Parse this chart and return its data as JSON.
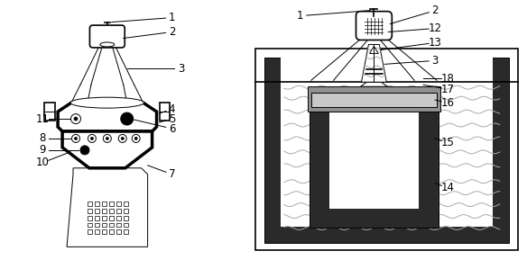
{
  "bg_color": "#ffffff",
  "line_color": "#000000",
  "gray_dark": "#2a2a2a",
  "gray_med": "#707070",
  "gray_light_wave": "#aaaaaa",
  "gray_winding_top": "#909090",
  "gray_winding_light": "#c8c8c8",
  "fig_width": 5.84,
  "fig_height": 2.89,
  "dpi": 100
}
